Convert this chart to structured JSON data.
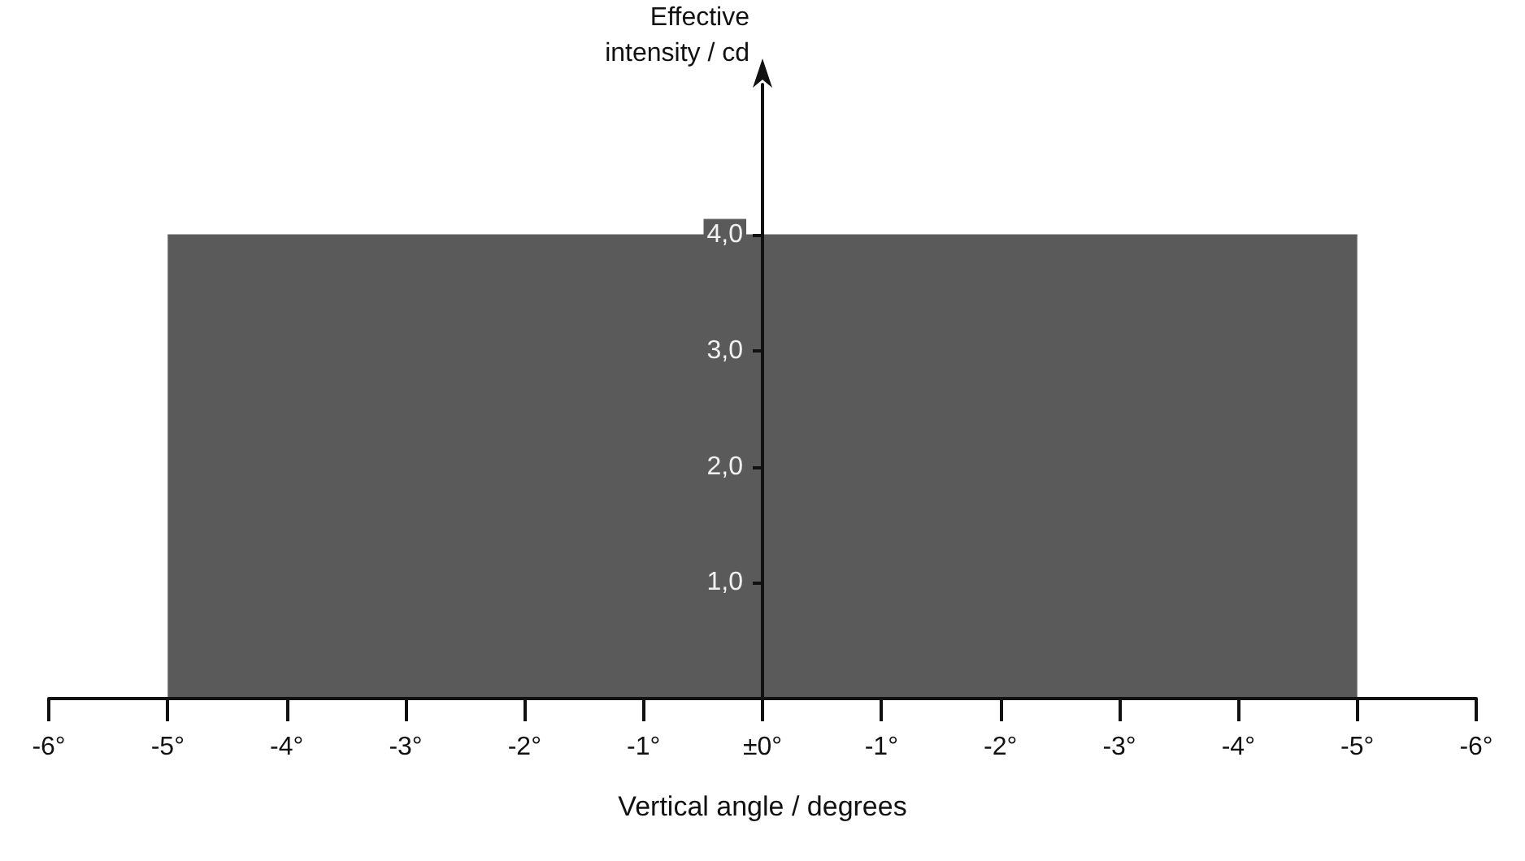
{
  "chart_data": {
    "type": "area",
    "xlabel": "Vertical angle / degrees",
    "ylabel": "Effective\nintensity / cd",
    "categories": [
      "-6°",
      "-5°",
      "-4°",
      "-3°",
      "-2°",
      "-1°",
      "±0°",
      "-1°",
      "-2°",
      "-3°",
      "-4°",
      "-5°",
      "-6°"
    ],
    "values": [
      null,
      4.0,
      4.0,
      4.0,
      4.0,
      4.0,
      4.0,
      4.0,
      4.0,
      4.0,
      4.0,
      4.0,
      null
    ],
    "color": "#5a5a5a",
    "ylim": [
      0,
      5.3
    ],
    "yticks": [
      {
        "value": 1,
        "label": "1,0"
      },
      {
        "value": 2,
        "label": "2,0"
      },
      {
        "value": 3,
        "label": "3,0"
      },
      {
        "value": 4,
        "label": "4,0"
      }
    ],
    "grid": false,
    "marker": "none"
  }
}
